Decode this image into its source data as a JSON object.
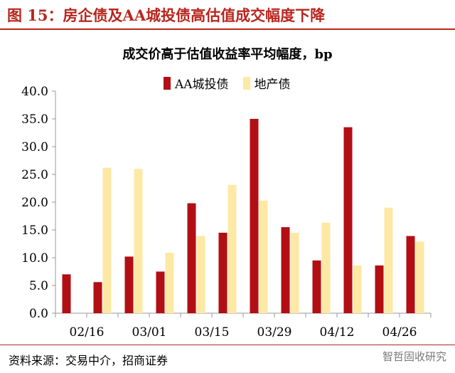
{
  "figure": {
    "title": "图 15：房企债及AA城投债高估值成交幅度下降",
    "source": "资料来源：交易中介，招商证券",
    "watermark": "智哲固收研究",
    "accent_color": "#b8261e"
  },
  "chart_data": {
    "type": "bar",
    "title": "成交价高于估值收益率平均幅度，bp",
    "x_tick_labels": [
      "02/16",
      "03/01",
      "03/15",
      "03/29",
      "04/12",
      "04/26"
    ],
    "n_groups": 12,
    "series": [
      {
        "name": "AA城投债",
        "color": "#b20e14",
        "values": [
          7.0,
          5.6,
          10.2,
          7.5,
          19.8,
          14.5,
          35.0,
          15.5,
          9.5,
          33.5,
          8.6,
          13.9
        ]
      },
      {
        "name": "地产债",
        "color": "#fde9a4",
        "values": [
          null,
          26.2,
          26.0,
          10.9,
          13.9,
          23.1,
          20.3,
          14.5,
          16.3,
          8.6,
          19.0,
          12.9
        ]
      }
    ],
    "ylim": [
      0,
      40
    ],
    "y_ticks": [
      "0.0",
      "5.0",
      "10.0",
      "15.0",
      "20.0",
      "25.0",
      "30.0",
      "35.0",
      "40.0"
    ],
    "xlabel": "",
    "ylabel": "",
    "grid": false,
    "legend_position": "top-center"
  }
}
